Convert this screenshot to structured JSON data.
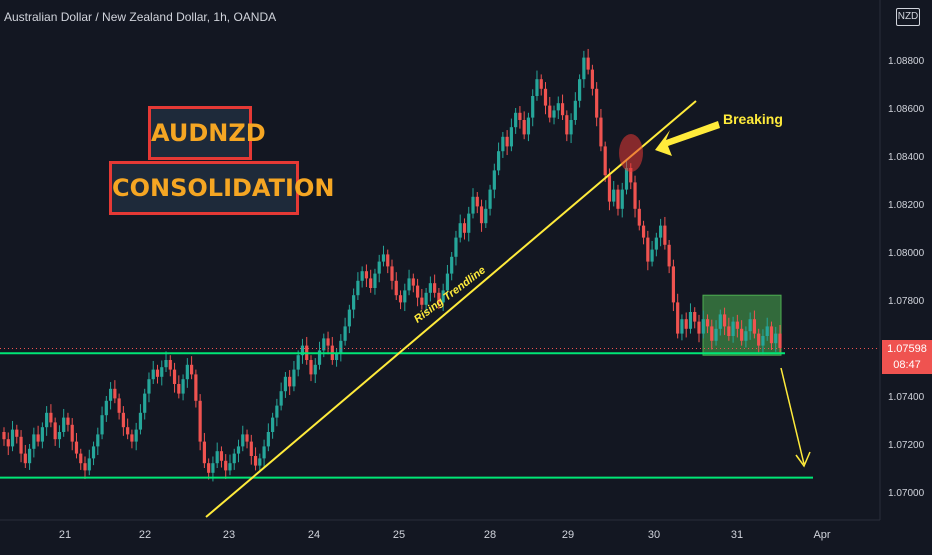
{
  "header": {
    "symbol_title": "Australian Dollar / New Zealand Dollar, 1h, OANDA"
  },
  "currency_badge": "NZD",
  "annotations": {
    "title_box": "AUDNZD",
    "subtitle_box": "CONSOLIDATION",
    "breaking_label": "Breaking",
    "trendline_label": "Rising Trendline"
  },
  "price_tag": {
    "price": "1.07598",
    "countdown": "08:47"
  },
  "colors": {
    "up": "#26a69a",
    "down": "#ef5350",
    "support": "#00e676",
    "trend": "#ffeb3b",
    "box_fill": "#4caf50"
  },
  "chart_data": {
    "type": "candlestick",
    "title": "Australian Dollar / New Zealand Dollar, 1h, OANDA",
    "x_tick_labels": [
      "21",
      "22",
      "23",
      "24",
      "25",
      "28",
      "29",
      "30",
      "31",
      "Apr"
    ],
    "y_tick_labels": [
      "1.08800",
      "1.08600",
      "1.08400",
      "1.08200",
      "1.08000",
      "1.07800",
      "1.07400",
      "1.07200",
      "1.07000"
    ],
    "ylim": [
      1.0686,
      1.0896
    ],
    "last_price": 1.07598,
    "support_levels": [
      1.0757,
      1.0706
    ],
    "consolidation_zone": {
      "from": "31",
      "low": 1.0757,
      "high": 1.0782
    },
    "rising_trendline": {
      "from": [
        "23",
        1.0697
      ],
      "to": [
        "29",
        1.0867
      ]
    },
    "closes": [
      1.0722,
      1.0719,
      1.0726,
      1.0723,
      1.0716,
      1.0712,
      1.0718,
      1.0724,
      1.0721,
      1.0727,
      1.0733,
      1.0729,
      1.0722,
      1.0725,
      1.0731,
      1.0728,
      1.0721,
      1.0716,
      1.0712,
      1.0709,
      1.0714,
      1.0719,
      1.0724,
      1.0732,
      1.0738,
      1.0743,
      1.0739,
      1.0733,
      1.0727,
      1.0724,
      1.0721,
      1.0726,
      1.0733,
      1.0741,
      1.0747,
      1.0751,
      1.0748,
      1.0752,
      1.0755,
      1.0751,
      1.0745,
      1.0741,
      1.0747,
      1.0753,
      1.0749,
      1.0738,
      1.0721,
      1.0712,
      1.0708,
      1.0712,
      1.0717,
      1.0713,
      1.0709,
      1.0712,
      1.0716,
      1.0719,
      1.0724,
      1.0721,
      1.0715,
      1.0711,
      1.0714,
      1.0719,
      1.0725,
      1.0731,
      1.0736,
      1.0742,
      1.0748,
      1.0744,
      1.0751,
      1.0757,
      1.0761,
      1.0755,
      1.0749,
      1.0753,
      1.0759,
      1.0764,
      1.0761,
      1.0755,
      1.0758,
      1.0763,
      1.0769,
      1.0776,
      1.0782,
      1.0788,
      1.0792,
      1.0789,
      1.0785,
      1.0791,
      1.0796,
      1.0799,
      1.0794,
      1.0788,
      1.0782,
      1.0779,
      1.0784,
      1.0789,
      1.0786,
      1.0781,
      1.0778,
      1.0783,
      1.0787,
      1.0783,
      1.0779,
      1.0784,
      1.0791,
      1.0798,
      1.0806,
      1.0812,
      1.0808,
      1.0816,
      1.0823,
      1.0819,
      1.0812,
      1.0818,
      1.0826,
      1.0834,
      1.0842,
      1.0848,
      1.0844,
      1.0852,
      1.0858,
      1.0855,
      1.0849,
      1.0856,
      1.0865,
      1.0872,
      1.0868,
      1.0861,
      1.0856,
      1.0859,
      1.0862,
      1.0857,
      1.0849,
      1.0855,
      1.0863,
      1.0872,
      1.0881,
      1.0876,
      1.0868,
      1.0856,
      1.0844,
      1.0832,
      1.0821,
      1.0826,
      1.0818,
      1.0826,
      1.0835,
      1.0829,
      1.0818,
      1.0811,
      1.0806,
      1.0796,
      1.0801,
      1.0806,
      1.0811,
      1.0803,
      1.0794,
      1.0779,
      1.0766,
      1.0772,
      1.0768,
      1.0775,
      1.0771,
      1.0766,
      1.0772,
      1.0769,
      1.0763,
      1.0768,
      1.0774,
      1.0769,
      1.0765,
      1.0771,
      1.0768,
      1.0763,
      1.0767,
      1.0772,
      1.0766,
      1.0761,
      1.0765,
      1.0769,
      1.0762,
      1.0766,
      1.076
    ]
  }
}
